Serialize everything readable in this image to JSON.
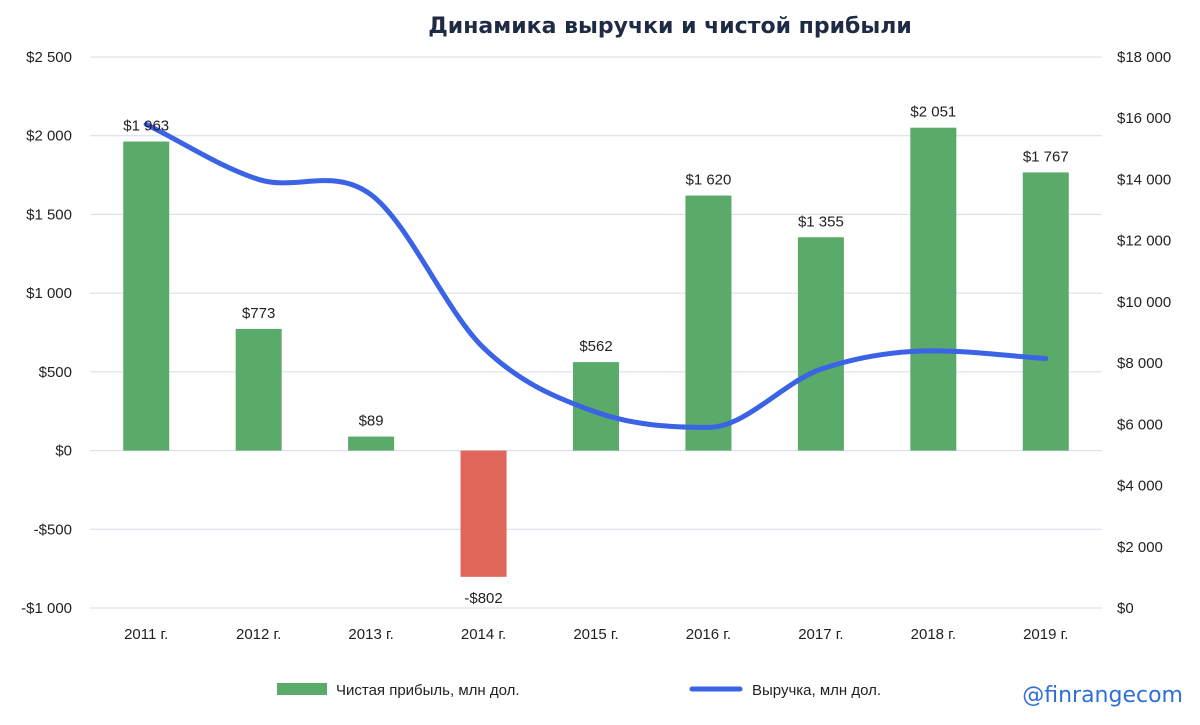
{
  "chart_data": {
    "type": "bar+line",
    "title": "Динамика выручки и чистой прибыли",
    "categories": [
      "2011 г.",
      "2012 г.",
      "2013 г.",
      "2014 г.",
      "2015 г.",
      "2016 г.",
      "2017 г.",
      "2018 г.",
      "2019 г."
    ],
    "series": [
      {
        "name": "Чистая прибыль, млн дол.",
        "type": "bar",
        "axis": "left",
        "values": [
          1963,
          773,
          89,
          -802,
          562,
          1620,
          1355,
          2051,
          1767
        ],
        "labels": [
          "$1 963",
          "$773",
          "$89",
          "-$802",
          "$562",
          "$1 620",
          "$1 355",
          "$2 051",
          "$1 767"
        ],
        "color": "#5aaa6a",
        "negative_color": "#e0665a"
      },
      {
        "name": "Выручка, млн дол.",
        "type": "line",
        "axis": "right",
        "smooth": true,
        "values": [
          15800,
          14000,
          13500,
          8500,
          6400,
          5900,
          7800,
          8400,
          8150
        ],
        "color": "#3b63e6"
      }
    ],
    "left_axis": {
      "ylim": [
        -1000,
        2500
      ],
      "ticks": [
        -1000,
        -500,
        0,
        500,
        1000,
        1500,
        2000,
        2500
      ],
      "tick_labels": [
        "-$1 000",
        "-$500",
        "$0",
        "$500",
        "$1 000",
        "$1 500",
        "$2 000",
        "$2 500"
      ]
    },
    "right_axis": {
      "ylim": [
        0,
        18000
      ],
      "ticks": [
        0,
        2000,
        4000,
        6000,
        8000,
        10000,
        12000,
        14000,
        16000,
        18000
      ],
      "tick_labels": [
        "$0",
        "$2 000",
        "$4 000",
        "$6 000",
        "$8 000",
        "$10 000",
        "$12 000",
        "$14 000",
        "$16 000",
        "$18 000"
      ]
    },
    "grid": true,
    "legend_position": "bottom"
  },
  "brand": "@finrangecom",
  "colors": {
    "grid": "#d5dbe8",
    "title": "#1f2a44",
    "brand": "#2f6fd6"
  }
}
